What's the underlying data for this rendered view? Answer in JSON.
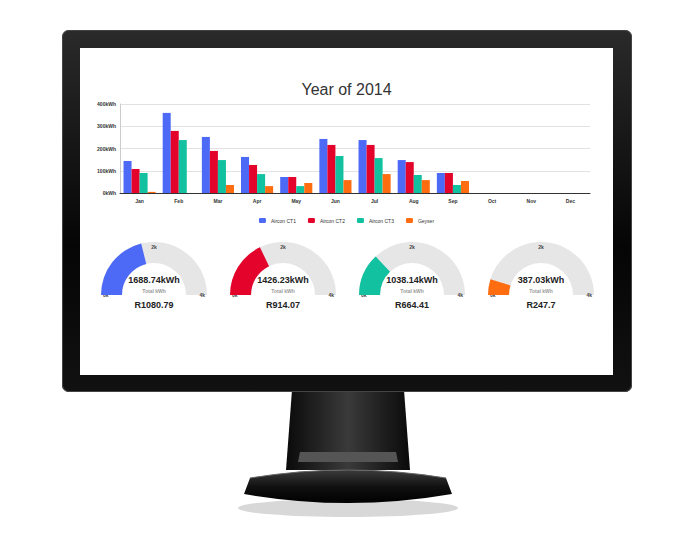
{
  "chart_data": [
    {
      "type": "bar",
      "title": "Year of 2014",
      "categories": [
        "Jan",
        "Feb",
        "Mar",
        "Apr",
        "May",
        "Jun",
        "Jul",
        "Aug",
        "Sep",
        "Oct",
        "Nov",
        "Dec"
      ],
      "series": [
        {
          "name": "Aircon CT1",
          "color": "#4d6af7",
          "values": [
            144,
            360,
            252,
            162,
            72,
            243,
            238,
            148,
            90,
            null,
            null,
            null
          ]
        },
        {
          "name": "Aircon CT2",
          "color": "#e3032b",
          "values": [
            108,
            279,
            189,
            126,
            72,
            216,
            216,
            139,
            90,
            null,
            null,
            null
          ]
        },
        {
          "name": "Aircon CT3",
          "color": "#12c1a0",
          "values": [
            90,
            238,
            148,
            85,
            31,
            166,
            157,
            81,
            36,
            null,
            null,
            null
          ]
        },
        {
          "name": "Geyser",
          "color": "#ff6d10",
          "values": [
            5,
            0,
            36,
            31,
            45,
            58,
            85,
            58,
            54,
            null,
            null,
            null
          ]
        }
      ],
      "ylim": [
        0,
        400
      ],
      "yticks": [
        {
          "value": 0,
          "label": "0kWh"
        },
        {
          "value": 100,
          "label": "100kWh"
        },
        {
          "value": 200,
          "label": "200kWh"
        },
        {
          "value": 300,
          "label": "300kWh"
        },
        {
          "value": 400,
          "label": "400kWh"
        }
      ],
      "grid": true,
      "legend": "bottom"
    },
    {
      "type": "gauge",
      "values": [
        1688.74
      ],
      "value_labels": [
        "1688.74kWh"
      ],
      "subtitle": "Total kWh",
      "annotations": [
        "R1080.79"
      ],
      "color": "#4d6af7",
      "ylim": [
        0,
        4000
      ],
      "yticks": [
        {
          "value": 0,
          "label": "0k"
        },
        {
          "value": 2000,
          "label": "2k"
        },
        {
          "value": 4000,
          "label": "4k"
        }
      ]
    },
    {
      "type": "gauge",
      "values": [
        1426.23
      ],
      "value_labels": [
        "1426.23kWh"
      ],
      "subtitle": "Total kWh",
      "annotations": [
        "R914.07"
      ],
      "color": "#e3032b",
      "ylim": [
        0,
        4000
      ],
      "yticks": [
        {
          "value": 0,
          "label": "0k"
        },
        {
          "value": 2000,
          "label": "2k"
        },
        {
          "value": 4000,
          "label": "4k"
        }
      ]
    },
    {
      "type": "gauge",
      "values": [
        1038.14
      ],
      "value_labels": [
        "1038.14kWh"
      ],
      "subtitle": "Total kWh",
      "annotations": [
        "R664.41"
      ],
      "color": "#12c1a0",
      "ylim": [
        0,
        4000
      ],
      "yticks": [
        {
          "value": 0,
          "label": "0k"
        },
        {
          "value": 2000,
          "label": "2k"
        },
        {
          "value": 4000,
          "label": "4k"
        }
      ]
    },
    {
      "type": "gauge",
      "values": [
        387.03
      ],
      "value_labels": [
        "387.03kWh"
      ],
      "subtitle": "Total kWh",
      "annotations": [
        "R247.7"
      ],
      "color": "#ff6d10",
      "ylim": [
        0,
        4000
      ],
      "yticks": [
        {
          "value": 0,
          "label": "0k"
        },
        {
          "value": 2000,
          "label": "2k"
        },
        {
          "value": 4000,
          "label": "4k"
        }
      ]
    }
  ]
}
